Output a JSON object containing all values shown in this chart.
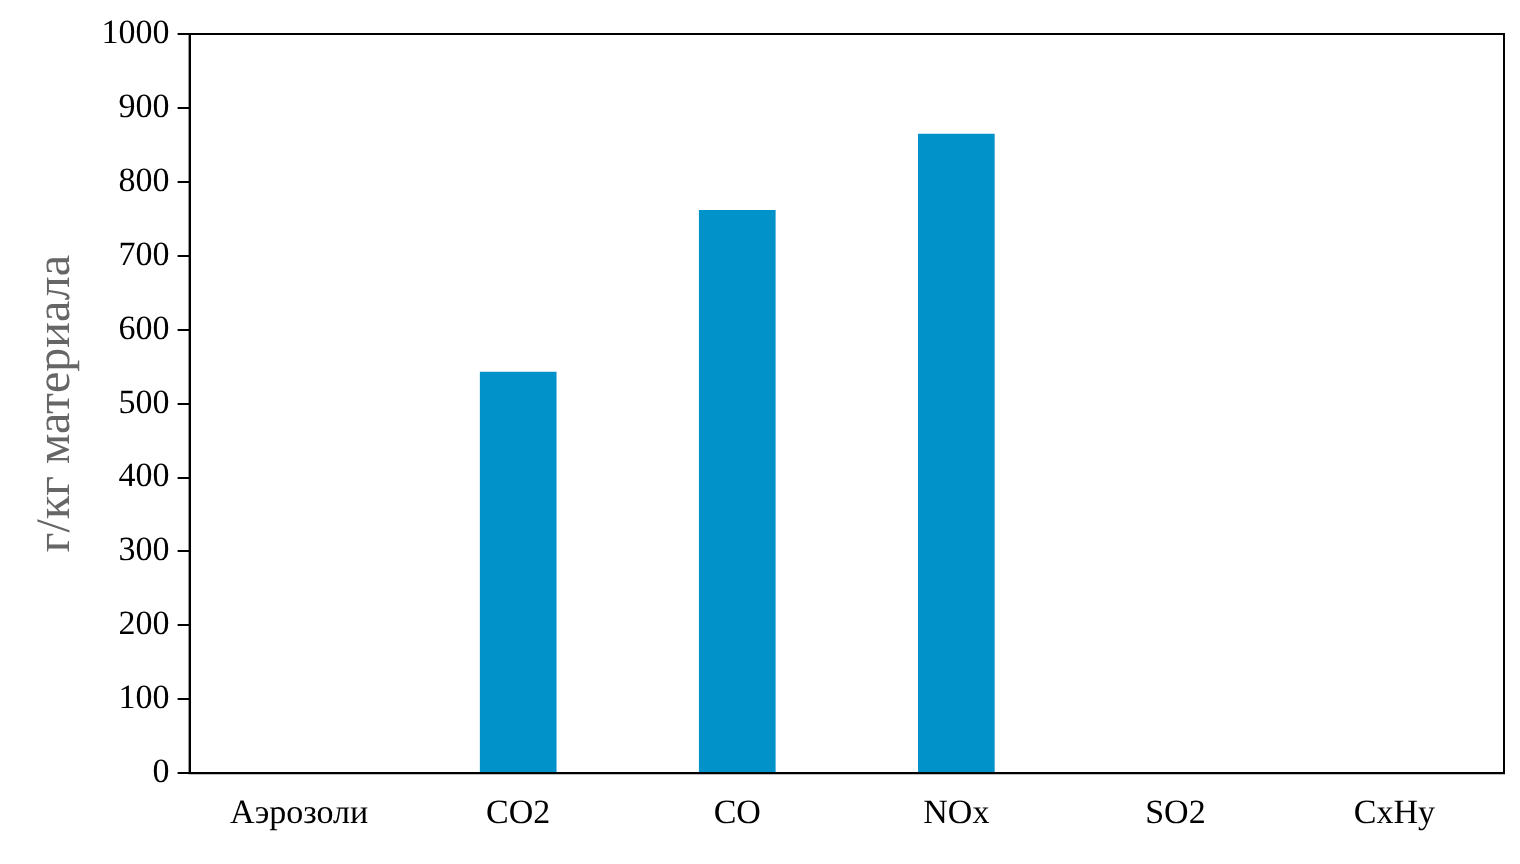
{
  "chart_data": {
    "type": "bar",
    "ylabel": "г/кг материала",
    "categories": [
      "Аэрозоли",
      "CO2",
      "CO",
      "NOx",
      "SO2",
      "CxHy"
    ],
    "values": [
      0,
      543,
      762,
      865,
      0,
      0
    ],
    "color": "#0092c8",
    "ylim": [
      0,
      1000
    ],
    "yticks": [
      0,
      100,
      200,
      300,
      400,
      500,
      600,
      700,
      800,
      900,
      1000
    ],
    "grid": false,
    "legend": false
  }
}
